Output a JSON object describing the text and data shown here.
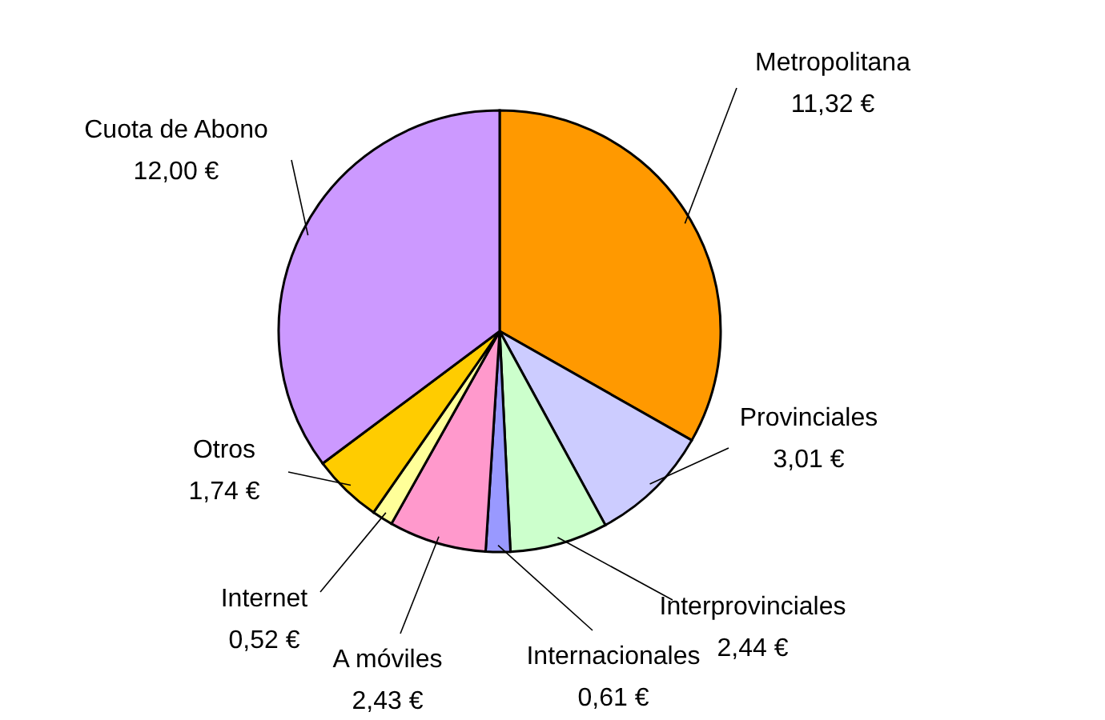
{
  "chart_data": {
    "type": "pie",
    "categories": [
      "Metropolitana",
      "Provinciales",
      "Interprovinciales",
      "Internacionales",
      "A móviles",
      "Internet",
      "Otros",
      "Cuota de Abono"
    ],
    "values": [
      11.32,
      3.01,
      2.44,
      0.61,
      2.43,
      0.52,
      1.74,
      12.0
    ],
    "value_labels": [
      "11,32 €",
      "3,01 €",
      "2,44 €",
      "0,61 €",
      "2,43 €",
      "0,52 €",
      "1,74 €",
      "12,00 €"
    ],
    "colors": [
      "#ff9900",
      "#ccccff",
      "#ccffcc",
      "#9999ff",
      "#ff99cc",
      "#ffff99",
      "#ffcc00",
      "#cc99ff"
    ]
  }
}
